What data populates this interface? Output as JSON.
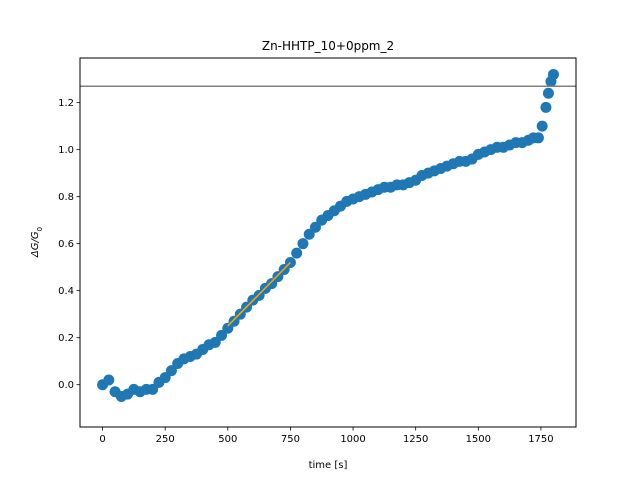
{
  "chart_data": {
    "type": "scatter",
    "title": "Zn-HHTP_10+0ppm_2",
    "xlabel": "time [s]",
    "ylabel_main": "ΔG/G",
    "ylabel_sub": "0",
    "xlim": [
      -90,
      1890
    ],
    "ylim": [
      -0.18,
      1.39
    ],
    "xticks": [
      0,
      250,
      500,
      750,
      1000,
      1250,
      1500,
      1750
    ],
    "yticks": [
      0.0,
      0.2,
      0.4,
      0.6,
      0.8,
      1.0,
      1.2
    ],
    "ytick_labels": [
      "0.0",
      "0.2",
      "0.4",
      "0.6",
      "0.8",
      "1.0",
      "1.2"
    ],
    "grid": false,
    "series": [
      {
        "kind": "scatter",
        "color": "#1f77b4",
        "x": [
          0,
          25,
          50,
          75,
          100,
          125,
          150,
          175,
          200,
          225,
          250,
          275,
          300,
          325,
          350,
          375,
          400,
          425,
          450,
          475,
          500,
          525,
          550,
          575,
          600,
          625,
          650,
          675,
          700,
          725,
          750,
          775,
          800,
          825,
          850,
          875,
          900,
          925,
          950,
          975,
          1000,
          1025,
          1050,
          1075,
          1100,
          1125,
          1150,
          1175,
          1200,
          1225,
          1250,
          1275,
          1300,
          1325,
          1350,
          1375,
          1400,
          1425,
          1450,
          1475,
          1500,
          1525,
          1550,
          1575,
          1600,
          1625,
          1650,
          1675,
          1700,
          1720,
          1740,
          1755,
          1770,
          1780,
          1790,
          1800
        ],
        "y": [
          0.0,
          0.02,
          -0.03,
          -0.05,
          -0.04,
          -0.02,
          -0.03,
          -0.02,
          -0.02,
          0.01,
          0.03,
          0.06,
          0.09,
          0.11,
          0.12,
          0.13,
          0.15,
          0.17,
          0.18,
          0.21,
          0.24,
          0.27,
          0.3,
          0.33,
          0.36,
          0.38,
          0.41,
          0.43,
          0.46,
          0.49,
          0.52,
          0.56,
          0.6,
          0.64,
          0.67,
          0.7,
          0.72,
          0.74,
          0.76,
          0.78,
          0.79,
          0.8,
          0.81,
          0.82,
          0.83,
          0.84,
          0.84,
          0.85,
          0.85,
          0.86,
          0.87,
          0.89,
          0.9,
          0.91,
          0.92,
          0.93,
          0.94,
          0.95,
          0.95,
          0.96,
          0.98,
          0.99,
          1.0,
          1.01,
          1.01,
          1.02,
          1.03,
          1.03,
          1.04,
          1.05,
          1.05,
          1.1,
          1.18,
          1.24,
          1.29,
          1.32
        ]
      },
      {
        "kind": "line",
        "color": "#ffa500",
        "x": [
          500,
          750
        ],
        "y": [
          0.25,
          0.52
        ]
      },
      {
        "kind": "hline",
        "color": "#808080",
        "y": 1.27
      }
    ]
  }
}
